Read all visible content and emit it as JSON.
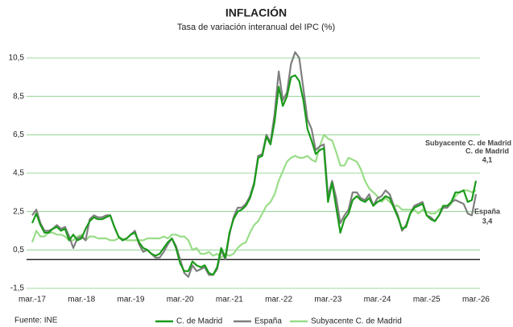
{
  "chart_data": {
    "type": "line",
    "title": "INFLACIÓN",
    "subtitle": "Tasa de variación interanual  del IPC (%)",
    "source": "Fuente:  INE",
    "categories": [
      "mar.-17",
      null,
      null,
      null,
      null,
      null,
      null,
      null,
      null,
      null,
      null,
      null,
      "mar.-18",
      null,
      null,
      null,
      null,
      null,
      null,
      null,
      null,
      null,
      null,
      null,
      "mar.-19",
      null,
      null,
      null,
      null,
      null,
      null,
      null,
      null,
      null,
      null,
      null,
      "mar.-20",
      null,
      null,
      null,
      null,
      null,
      null,
      null,
      null,
      null,
      null,
      null,
      "mar.-21",
      null,
      null,
      null,
      null,
      null,
      null,
      null,
      null,
      null,
      null,
      null,
      "mar.-22",
      null,
      null,
      null,
      null,
      null,
      null,
      null,
      null,
      null,
      null,
      null,
      "mar.-23",
      null,
      null,
      null,
      null,
      null,
      null,
      null,
      null,
      null,
      null,
      null,
      "mar.-24",
      null,
      null,
      null,
      null,
      null,
      null,
      null,
      null,
      null,
      null,
      null,
      "mar.-25",
      null,
      null,
      null,
      null,
      null,
      null,
      null,
      null,
      null,
      null,
      null,
      "mar.-26"
    ],
    "series": [
      {
        "name": "C. de Madrid",
        "color": "#1a9a1a",
        "end_label": "4,1",
        "values": [
          1.9,
          2.4,
          1.8,
          1.4,
          1.4,
          1.6,
          1.7,
          1.5,
          1.6,
          1.0,
          1.3,
          1.0,
          1.1,
          1.6,
          2.0,
          2.2,
          2.1,
          2.1,
          2.2,
          2.3,
          1.7,
          1.2,
          1.0,
          1.1,
          1.3,
          1.4,
          0.9,
          0.6,
          0.5,
          0.3,
          0.2,
          0.3,
          0.6,
          0.9,
          1.1,
          0.6,
          -0.2,
          -0.6,
          -0.6,
          -0.1,
          -0.3,
          -0.4,
          -0.3,
          -0.7,
          -0.8,
          -0.4,
          0.6,
          0.1,
          1.4,
          2.1,
          2.5,
          2.6,
          2.8,
          3.2,
          3.9,
          5.3,
          5.4,
          6.4,
          6.0,
          7.2,
          9.0,
          8.0,
          8.5,
          9.5,
          9.6,
          9.3,
          8.3,
          6.8,
          6.2,
          5.5,
          5.7,
          5.8,
          3.0,
          4.0,
          2.7,
          1.4,
          2.1,
          2.4,
          3.1,
          3.3,
          3.1,
          3.0,
          3.2,
          2.8,
          3.0,
          3.1,
          3.3,
          3.2,
          2.7,
          2.2,
          1.6,
          1.7,
          2.4,
          2.7,
          2.8,
          2.9,
          2.3,
          2.1,
          2.0,
          2.3,
          2.8,
          2.8,
          3.0,
          3.5,
          3.5,
          3.6,
          3.0,
          3.1,
          4.1
        ]
      },
      {
        "name": "España",
        "color": "#7f7f7f",
        "end_label": "3,4",
        "values": [
          2.3,
          2.6,
          1.9,
          1.5,
          1.5,
          1.6,
          1.8,
          1.6,
          1.7,
          1.2,
          0.6,
          1.1,
          1.2,
          1.0,
          2.1,
          2.3,
          2.2,
          2.2,
          2.3,
          2.3,
          1.7,
          1.2,
          1.0,
          1.1,
          1.3,
          1.5,
          0.8,
          0.4,
          0.5,
          0.3,
          0.1,
          0.1,
          0.4,
          0.8,
          1.1,
          0.7,
          0.0,
          -0.7,
          -0.9,
          -0.3,
          -0.6,
          -0.5,
          -0.4,
          -0.8,
          -0.8,
          -0.5,
          0.5,
          0.0,
          1.3,
          2.2,
          2.7,
          2.7,
          2.9,
          3.3,
          4.0,
          5.4,
          5.5,
          6.5,
          6.1,
          7.6,
          9.8,
          8.3,
          8.7,
          10.2,
          10.8,
          10.5,
          8.9,
          7.3,
          6.8,
          5.7,
          5.9,
          6.0,
          3.3,
          4.1,
          3.2,
          1.9,
          2.3,
          2.6,
          3.5,
          3.5,
          3.2,
          3.1,
          3.4,
          2.8,
          3.2,
          3.3,
          3.6,
          3.4,
          2.8,
          2.3,
          1.5,
          1.8,
          2.4,
          2.8,
          2.9,
          3.0,
          2.3,
          2.2,
          2.0,
          2.3,
          2.7,
          2.7,
          3.0,
          3.1,
          3.0,
          2.9,
          2.4,
          2.3,
          3.4
        ]
      },
      {
        "name": "Subyacente C. de Madrid",
        "color": "#99dd88",
        "values": [
          0.9,
          1.5,
          1.2,
          1.2,
          1.4,
          1.4,
          1.3,
          1.3,
          1.2,
          1.0,
          1.0,
          1.2,
          1.3,
          1.0,
          1.2,
          1.2,
          1.1,
          1.1,
          1.1,
          1.0,
          1.0,
          1.1,
          1.1,
          1.0,
          1.0,
          1.0,
          1.0,
          1.0,
          1.1,
          1.1,
          1.1,
          1.1,
          1.2,
          1.1,
          1.3,
          1.3,
          1.2,
          1.2,
          1.0,
          0.5,
          0.6,
          0.3,
          0.3,
          0.4,
          0.2,
          0.3,
          0.1,
          0.3,
          0.2,
          0.3,
          0.6,
          0.8,
          0.9,
          1.4,
          1.8,
          2.0,
          2.4,
          2.8,
          3.0,
          3.4,
          4.1,
          4.6,
          5.1,
          5.3,
          5.4,
          5.3,
          5.3,
          5.4,
          5.2,
          5.1,
          5.9,
          6.5,
          6.3,
          6.2,
          5.6,
          4.9,
          4.9,
          5.3,
          5.2,
          5.1,
          4.7,
          4.1,
          3.7,
          3.5,
          3.3,
          3.0,
          3.2,
          3.0,
          2.8,
          2.8,
          2.6,
          2.6,
          2.6,
          2.6,
          2.4,
          2.6,
          2.5,
          2.4,
          2.4,
          2.6,
          2.7,
          2.7,
          2.9,
          3.3,
          3.5,
          3.6,
          3.6,
          3.5,
          3.6
        ]
      }
    ],
    "annotations": [
      "Subyacente C. de Madrid"
    ],
    "ylim": [
      -1.5,
      10.5
    ],
    "yticks": [
      {
        "value": -1.5,
        "label": "-1,5"
      },
      {
        "value": 0.5,
        "label": "0,5"
      },
      {
        "value": 2.5,
        "label": "2,5"
      },
      {
        "value": 4.5,
        "label": "4,5"
      },
      {
        "value": 6.5,
        "label": "6,5"
      },
      {
        "value": 8.5,
        "label": "8,5"
      },
      {
        "value": 10.5,
        "label": "10,5"
      }
    ],
    "reference_line": 0,
    "grid": true,
    "grid_color": "#7fcc7f",
    "legend": "bottom"
  }
}
